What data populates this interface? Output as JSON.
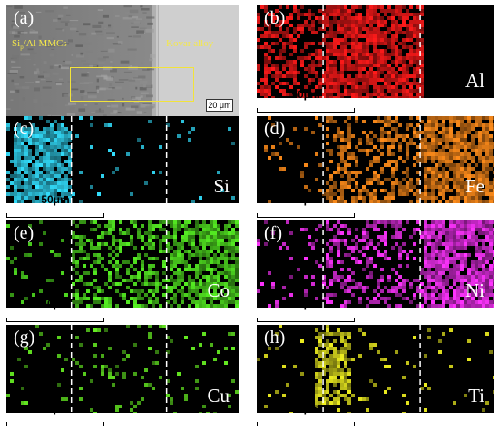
{
  "panels": [
    {
      "id": "a",
      "letter": "(a)",
      "left_label": "Sip/Al MMCs",
      "right_label": "Kovar alloy",
      "scale": "20 μm"
    },
    {
      "id": "b",
      "letter": "(b)",
      "element": "Al",
      "color": "#ff1a1a",
      "scale": "50μm"
    },
    {
      "id": "c",
      "letter": "(c)",
      "element": "Si",
      "color": "#33e0ff",
      "scale": "50μm"
    },
    {
      "id": "d",
      "letter": "(d)",
      "element": "Fe",
      "color": "#ff8c1a",
      "scale": "50μm"
    },
    {
      "id": "e",
      "letter": "(e)",
      "element": "Co",
      "color": "#55ee22",
      "scale": "50μm"
    },
    {
      "id": "f",
      "letter": "(f)",
      "element": "Ni",
      "color": "#ff33ff",
      "scale": "50μm"
    },
    {
      "id": "g",
      "letter": "(g)",
      "element": "Cu",
      "color": "#66ee22",
      "scale": "50μm"
    },
    {
      "id": "h",
      "letter": "(h)",
      "element": "Ti",
      "color": "#f0f020",
      "scale": "50μm"
    }
  ]
}
